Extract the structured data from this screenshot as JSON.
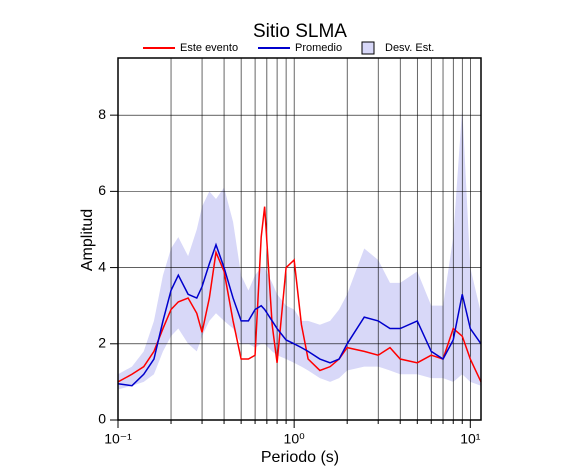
{
  "chart_data": {
    "type": "line",
    "title": "Sitio SLMA",
    "xlabel": "Periodo (s)",
    "ylabel": "Amplitud",
    "xscale": "log",
    "grid": true,
    "xlim": [
      0.1,
      11.5
    ],
    "ylim": [
      0,
      9.5
    ],
    "xticks": [
      {
        "value": 0.1,
        "label": "10⁻¹"
      },
      {
        "value": 1,
        "label": "10⁰"
      },
      {
        "value": 10,
        "label": "10¹"
      }
    ],
    "xminor": [
      0.2,
      0.3,
      0.4,
      0.5,
      0.6,
      0.7,
      0.8,
      0.9,
      2,
      3,
      4,
      5,
      6,
      7,
      8,
      9
    ],
    "yticks": [
      0,
      2,
      4,
      6,
      8
    ],
    "x": [
      0.1,
      0.12,
      0.14,
      0.16,
      0.18,
      0.2,
      0.22,
      0.25,
      0.28,
      0.3,
      0.33,
      0.36,
      0.4,
      0.45,
      0.5,
      0.55,
      0.6,
      0.65,
      0.68,
      0.75,
      0.8,
      0.9,
      1.0,
      1.1,
      1.2,
      1.4,
      1.6,
      1.8,
      2,
      2.5,
      3,
      3.5,
      4,
      5,
      6,
      7,
      8,
      9,
      10,
      11.5
    ],
    "series": [
      {
        "name": "Este evento",
        "color": "#ff0000",
        "values": [
          1.0,
          1.2,
          1.4,
          1.8,
          2.4,
          2.9,
          3.1,
          3.2,
          2.8,
          2.3,
          3.2,
          4.4,
          3.9,
          2.6,
          1.6,
          1.6,
          1.7,
          4.8,
          5.6,
          2.5,
          1.5,
          4.0,
          4.2,
          2.5,
          1.6,
          1.3,
          1.4,
          1.6,
          1.9,
          1.8,
          1.7,
          1.9,
          1.6,
          1.5,
          1.7,
          1.6,
          2.4,
          2.2,
          1.6,
          1.0
        ]
      },
      {
        "name": "Promedio",
        "color": "#0000cc",
        "values": [
          0.95,
          0.9,
          1.2,
          1.6,
          2.6,
          3.4,
          3.8,
          3.3,
          3.2,
          3.5,
          4.1,
          4.6,
          4.0,
          3.2,
          2.6,
          2.6,
          2.9,
          3.0,
          2.9,
          2.6,
          2.4,
          2.1,
          2.0,
          1.9,
          1.8,
          1.6,
          1.5,
          1.6,
          2.0,
          2.7,
          2.6,
          2.4,
          2.4,
          2.6,
          1.8,
          1.6,
          2.1,
          3.3,
          2.4,
          2.0
        ]
      }
    ],
    "band": {
      "name": "Desv. Est.",
      "color": "#d8d8f8",
      "upper": [
        1.2,
        1.4,
        1.8,
        2.6,
        3.8,
        4.5,
        4.8,
        4.3,
        5.0,
        5.6,
        6.0,
        5.8,
        6.1,
        5.2,
        3.8,
        3.4,
        3.8,
        4.0,
        4.0,
        3.6,
        3.3,
        3.0,
        2.9,
        2.6,
        2.6,
        2.5,
        2.6,
        2.9,
        3.3,
        4.5,
        4.2,
        3.6,
        3.6,
        3.9,
        3.0,
        3.0,
        4.8,
        8.2,
        4.0,
        2.8
      ],
      "lower": [
        0.8,
        0.9,
        1.0,
        1.2,
        1.8,
        2.2,
        2.4,
        2.0,
        1.8,
        2.2,
        2.6,
        2.8,
        2.6,
        2.4,
        2.0,
        2.0,
        1.9,
        2.0,
        2.0,
        1.8,
        1.7,
        1.6,
        1.5,
        1.4,
        1.3,
        1.1,
        1.0,
        1.1,
        1.3,
        1.4,
        1.4,
        1.3,
        1.2,
        1.2,
        1.1,
        1.1,
        1.0,
        1.2,
        1.0,
        0.9
      ]
    }
  }
}
